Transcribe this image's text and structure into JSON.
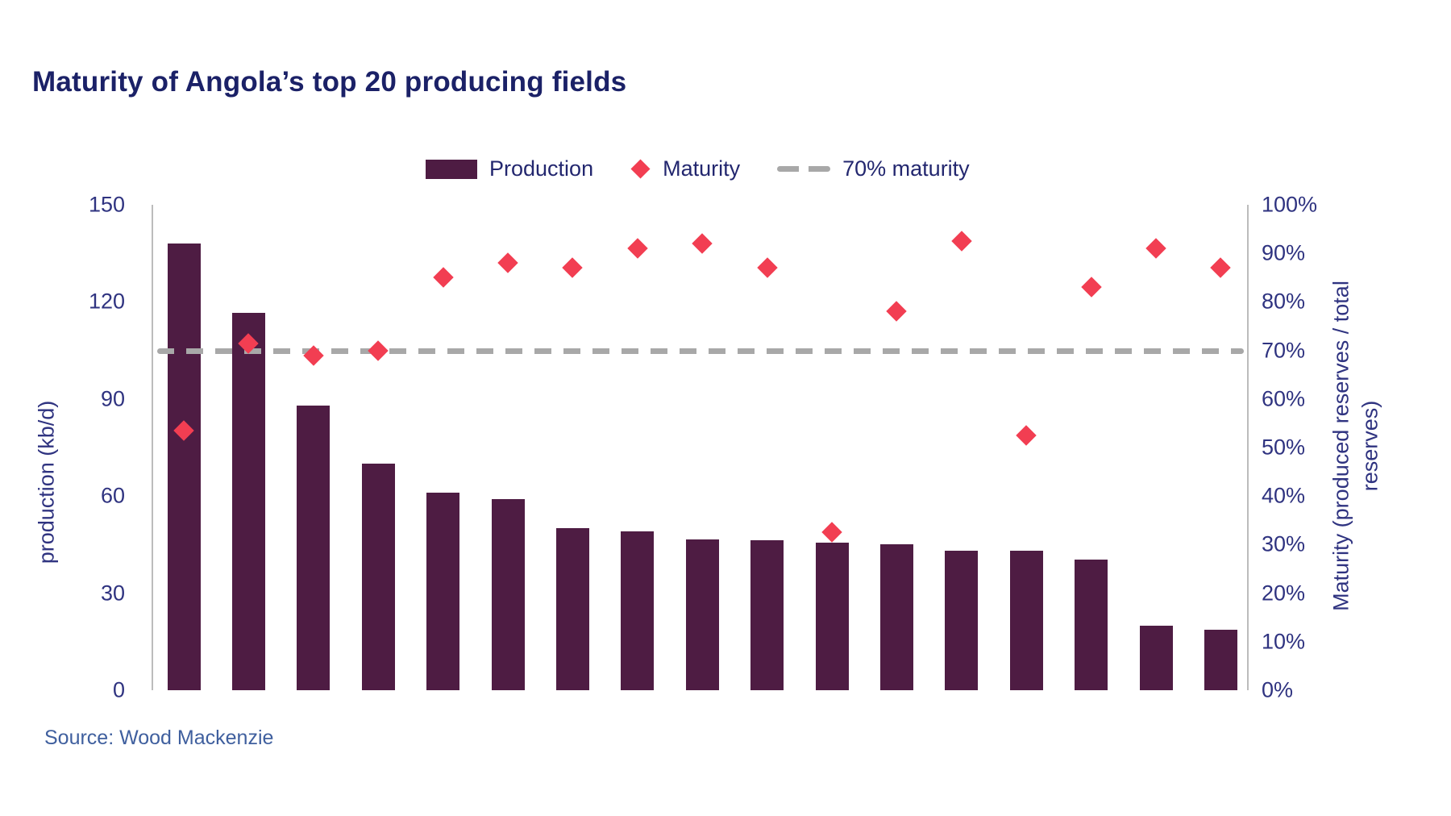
{
  "title": "Maturity of Angola’s top 20 producing fields",
  "source": "Source: Wood Mackenzie",
  "legend": {
    "production": "Production",
    "maturity": "Maturity",
    "threshold": "70% maturity"
  },
  "colors": {
    "bar": "#4e1c43",
    "marker": "#f23e52",
    "threshold_line": "#a8a8a8",
    "title_text": "#1b2167",
    "axis_text": "#2f3380",
    "source_text": "#3f5f9e",
    "axis_line": "#bcbcbc"
  },
  "chart_data": {
    "type": "bar",
    "title": "Maturity of Angola’s top 20 producing fields",
    "x_category_labels_visible": false,
    "series": [
      {
        "name": "Production",
        "type": "bar",
        "axis": "left",
        "values": [
          138,
          116.5,
          88,
          70,
          61,
          59,
          50,
          49,
          46.5,
          46.3,
          45.5,
          45,
          43.2,
          43,
          40.3,
          20,
          18.6
        ]
      },
      {
        "name": "Maturity",
        "type": "scatter",
        "axis": "right",
        "values_pct": [
          53.5,
          71.5,
          69,
          70,
          85,
          88,
          87,
          91,
          92,
          87,
          32.5,
          78,
          92.5,
          52.5,
          83,
          91,
          87
        ]
      }
    ],
    "threshold_line": {
      "name": "70% maturity",
      "value_pct": 70,
      "style": "dashed"
    },
    "left_axis": {
      "label": "production (kb/d)",
      "range": [
        0,
        150
      ],
      "ticks": [
        0,
        30,
        60,
        90,
        120,
        150
      ]
    },
    "right_axis": {
      "label": "Maturity (produced reserves / total reserves)",
      "range_pct": [
        0,
        100
      ],
      "tick_labels": [
        "0%",
        "10%",
        "20%",
        "30%",
        "40%",
        "50%",
        "60%",
        "70%",
        "80%",
        "90%",
        "100%"
      ]
    },
    "legend_position": "top",
    "grid": false
  }
}
